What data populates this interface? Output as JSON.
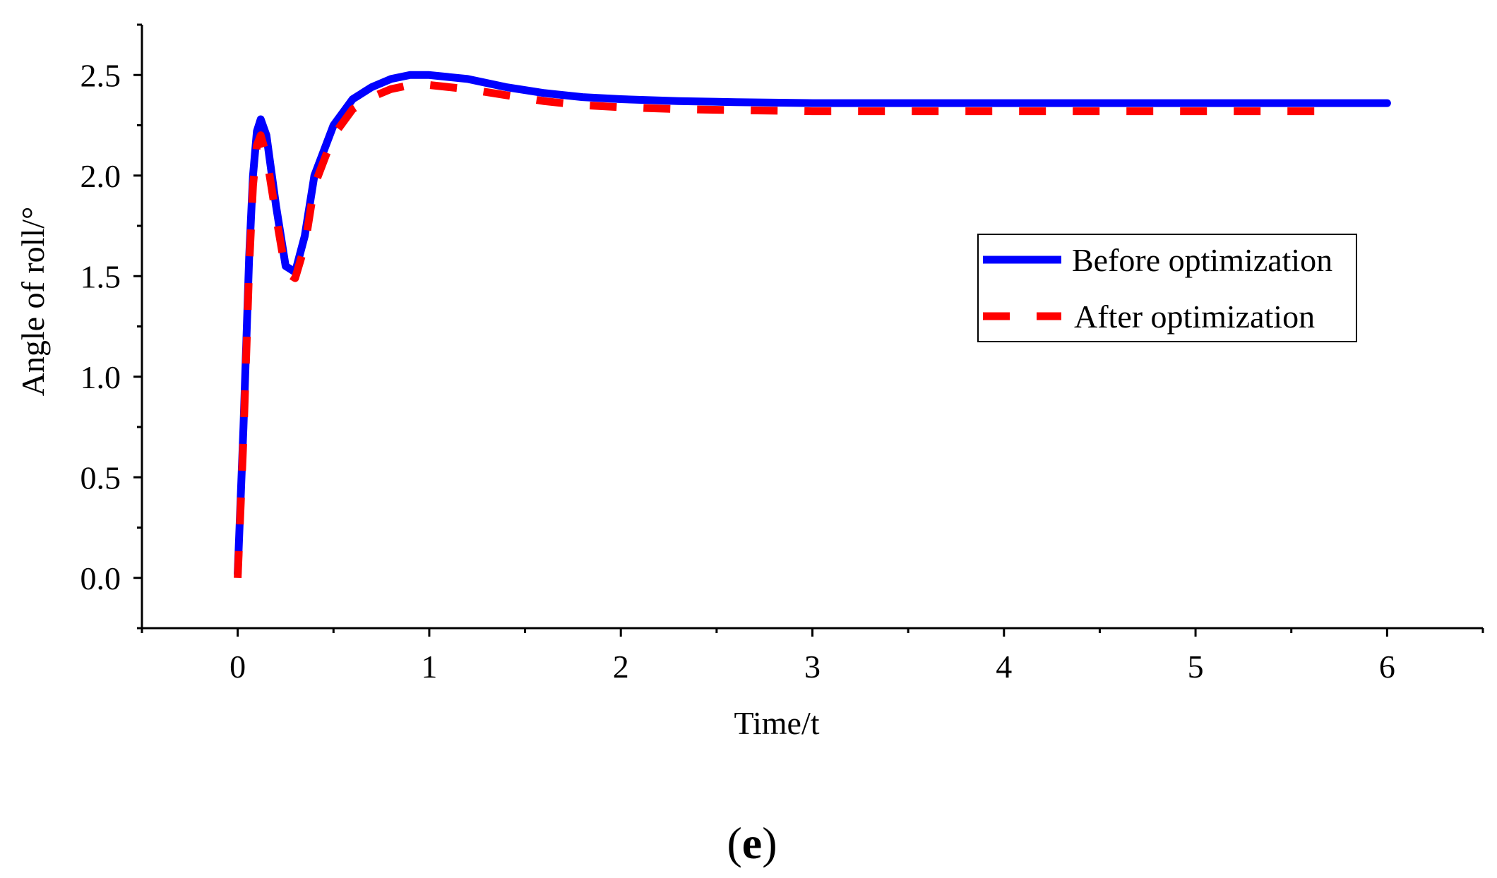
{
  "chart_data": {
    "type": "line",
    "title": "",
    "xlabel": "Time/t",
    "ylabel": "Angle of roll/°",
    "xlim": [
      -0.5,
      6.5
    ],
    "ylim": [
      -0.25,
      2.75
    ],
    "xticks": [
      0,
      1,
      2,
      3,
      4,
      5,
      6
    ],
    "xtick_labels": [
      "0",
      "1",
      "2",
      "3",
      "4",
      "5",
      "6"
    ],
    "yticks": [
      0.0,
      0.5,
      1.0,
      1.5,
      2.0,
      2.5
    ],
    "ytick_labels": [
      "0.0",
      "0.5",
      "1.0",
      "1.5",
      "2.0",
      "2.5"
    ],
    "grid": false,
    "legend_position": "center-right",
    "series": [
      {
        "name": "Before optimization",
        "color": "#0000ff",
        "style": "solid",
        "x": [
          0,
          0.03,
          0.06,
          0.08,
          0.1,
          0.12,
          0.15,
          0.2,
          0.25,
          0.3,
          0.35,
          0.4,
          0.5,
          0.6,
          0.7,
          0.8,
          0.9,
          1.0,
          1.2,
          1.4,
          1.6,
          1.8,
          2.0,
          2.3,
          2.6,
          3.0,
          4.0,
          5.0,
          6.0
        ],
        "y": [
          0.02,
          0.75,
          1.6,
          2.0,
          2.22,
          2.28,
          2.2,
          1.85,
          1.55,
          1.52,
          1.7,
          2.0,
          2.25,
          2.38,
          2.44,
          2.48,
          2.5,
          2.5,
          2.48,
          2.44,
          2.41,
          2.39,
          2.38,
          2.37,
          2.365,
          2.36,
          2.36,
          2.36,
          2.36
        ]
      },
      {
        "name": "After optimization",
        "color": "#ff0000",
        "style": "dashed",
        "x": [
          0,
          0.03,
          0.06,
          0.08,
          0.1,
          0.12,
          0.15,
          0.2,
          0.25,
          0.3,
          0.35,
          0.4,
          0.5,
          0.6,
          0.7,
          0.8,
          0.9,
          1.0,
          1.2,
          1.4,
          1.6,
          1.8,
          2.0,
          2.3,
          2.6,
          3.0,
          4.0,
          5.0,
          5.75
        ],
        "y": [
          0.0,
          0.7,
          1.55,
          1.95,
          2.15,
          2.2,
          2.1,
          1.8,
          1.52,
          1.49,
          1.65,
          1.95,
          2.2,
          2.33,
          2.39,
          2.43,
          2.45,
          2.45,
          2.43,
          2.4,
          2.37,
          2.35,
          2.34,
          2.33,
          2.325,
          2.32,
          2.32,
          2.32,
          2.32
        ]
      }
    ],
    "panel_label": {
      "open": "(",
      "letter": "e",
      "close": ")"
    }
  }
}
